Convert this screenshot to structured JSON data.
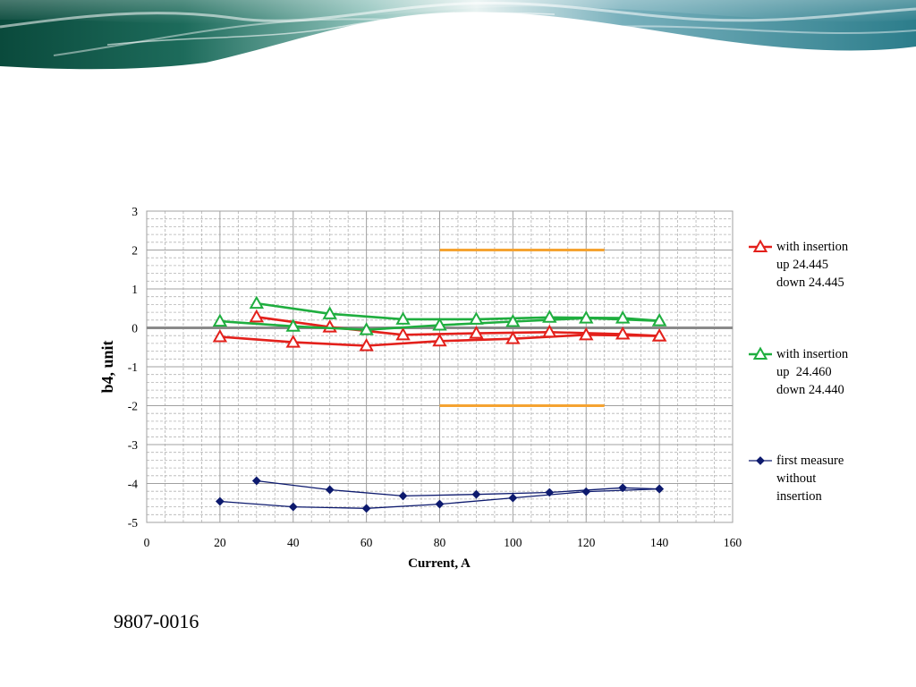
{
  "slide": {
    "label": "9807-0016"
  },
  "theme": {
    "banner": [
      "#0a4a3c",
      "#1d6b5b",
      "#8fc2bb",
      "#e8f2f1",
      "#78b0bc",
      "#2c7d8b"
    ]
  },
  "chart_data": {
    "type": "line",
    "xlabel": "Current, A",
    "ylabel": "b4, unit",
    "xlim": [
      0,
      160
    ],
    "ylim": [
      -5,
      3
    ],
    "x_ticks": [
      0,
      20,
      40,
      60,
      80,
      100,
      120,
      140,
      160
    ],
    "y_ticks": [
      3,
      2,
      1,
      0,
      -1,
      -2,
      -3,
      -4,
      -5
    ],
    "grid": true,
    "legend_position": "right",
    "reference_lines": [
      {
        "y": 2,
        "x": [
          80,
          125
        ],
        "color": "#f5a331"
      },
      {
        "y": -2,
        "x": [
          80,
          125
        ],
        "color": "#f5a331"
      }
    ],
    "series": [
      {
        "legend": [
          "with insertion",
          "up 24.445",
          "down 24.445"
        ],
        "color": "#e3201b",
        "marker": "triangle",
        "branches": [
          {
            "x": [
              20,
              40,
              60,
              80,
              100,
              120,
              140
            ],
            "y": [
              -0.23,
              -0.37,
              -0.46,
              -0.34,
              -0.28,
              -0.18,
              -0.21
            ]
          },
          {
            "x": [
              140,
              130,
              110,
              90,
              70,
              50,
              30
            ],
            "y": [
              -0.21,
              -0.16,
              -0.11,
              -0.14,
              -0.18,
              0.02,
              0.28
            ]
          }
        ]
      },
      {
        "legend": [
          "with insertion",
          "up  24.460",
          "down 24.440"
        ],
        "color": "#1fae3f",
        "marker": "triangle",
        "branches": [
          {
            "x": [
              20,
              40,
              60,
              80,
              100,
              120,
              140
            ],
            "y": [
              0.17,
              0.04,
              -0.05,
              0.07,
              0.16,
              0.25,
              0.18
            ]
          },
          {
            "x": [
              140,
              130,
              110,
              90,
              70,
              50,
              30
            ],
            "y": [
              0.18,
              0.25,
              0.27,
              0.22,
              0.22,
              0.36,
              0.63
            ]
          }
        ]
      },
      {
        "legend": [
          "first measure",
          "without",
          "insertion"
        ],
        "color": "#0d1a6e",
        "marker": "diamond",
        "branches": [
          {
            "x": [
              20,
              40,
              60,
              80,
              100,
              120,
              140
            ],
            "y": [
              -4.46,
              -4.6,
              -4.64,
              -4.53,
              -4.37,
              -4.21,
              -4.14
            ]
          },
          {
            "x": [
              140,
              130,
              110,
              90,
              70,
              50,
              30
            ],
            "y": [
              -4.14,
              -4.11,
              -4.23,
              -4.28,
              -4.32,
              -4.16,
              -3.93
            ]
          }
        ]
      }
    ]
  }
}
